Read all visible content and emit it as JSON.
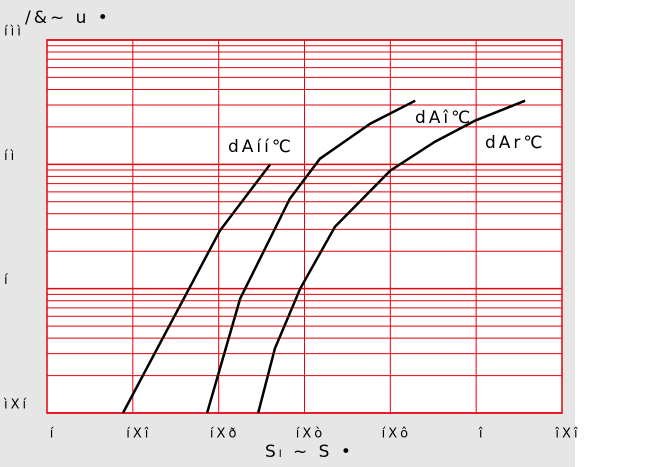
{
  "chart_data": {
    "type": "line",
    "title": "/&~ u •",
    "x_label": "Sₗ ~ S •",
    "log_y": true,
    "grid": true,
    "color": "#e8000b",
    "xlim": [
      1.0,
      2.2
    ],
    "ylim": [
      0.1,
      100
    ],
    "xticks": [
      {
        "value": 1.0,
        "label": "í"
      },
      {
        "value": 1.2,
        "label": "íXî"
      },
      {
        "value": 1.4,
        "label": "íXð"
      },
      {
        "value": 1.6,
        "label": "íXò"
      },
      {
        "value": 1.8,
        "label": "íXô"
      },
      {
        "value": 2.0,
        "label": "î"
      },
      {
        "value": 2.2,
        "label": "îXî"
      }
    ],
    "yticks": [
      {
        "value": 0.1,
        "label": "ìXí"
      },
      {
        "value": 1,
        "label": "í"
      },
      {
        "value": 10,
        "label": "íì"
      },
      {
        "value": 100,
        "label": "íìì"
      }
    ],
    "series": [
      {
        "name": "dAíí℃",
        "color": "#000000",
        "x": [
          1.177,
          1.403,
          1.52
        ],
        "values": [
          0.1,
          2.93,
          10
        ]
      },
      {
        "name": "dAî℃",
        "color": "#000000",
        "x": [
          1.373,
          1.45,
          1.566,
          1.636,
          1.753,
          1.858
        ],
        "values": [
          0.1,
          0.83,
          5.3,
          11.1,
          21.2,
          32.5
        ]
      },
      {
        "name": "dAr℃",
        "color": "#000000",
        "x": [
          1.492,
          1.531,
          1.59,
          1.671,
          1.8,
          1.904,
          1.998,
          2.114
        ],
        "values": [
          0.1,
          0.33,
          1.0,
          3.15,
          8.9,
          15.2,
          22.5,
          32.5
        ]
      }
    ]
  }
}
